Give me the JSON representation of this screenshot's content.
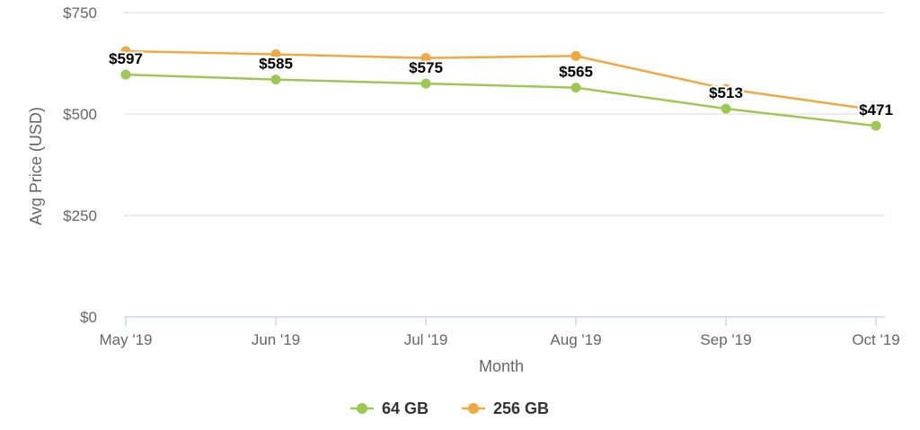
{
  "chart_data": {
    "type": "line",
    "title": "",
    "xlabel": "Month",
    "ylabel": "Avg Price (USD)",
    "categories": [
      "May '19",
      "Jun '19",
      "Jul '19",
      "Aug '19",
      "Sep '19",
      "Oct '19"
    ],
    "ylim": [
      0,
      750
    ],
    "yticks": [
      0,
      250,
      500,
      750
    ],
    "ytick_labels": [
      "$0",
      "$250",
      "$500",
      "$750"
    ],
    "grid": true,
    "legend_position": "bottom-center",
    "series": [
      {
        "name": "64 GB",
        "color": "#9dc952",
        "values": [
          597,
          585,
          575,
          565,
          513,
          471
        ],
        "data_labels": [
          "$597",
          "$585",
          "$575",
          "$565",
          "$513",
          "$471"
        ]
      },
      {
        "name": "256 GB",
        "color": "#f0a83f",
        "values": [
          655,
          647,
          638,
          643,
          562,
          510
        ],
        "data_labels": []
      }
    ]
  }
}
